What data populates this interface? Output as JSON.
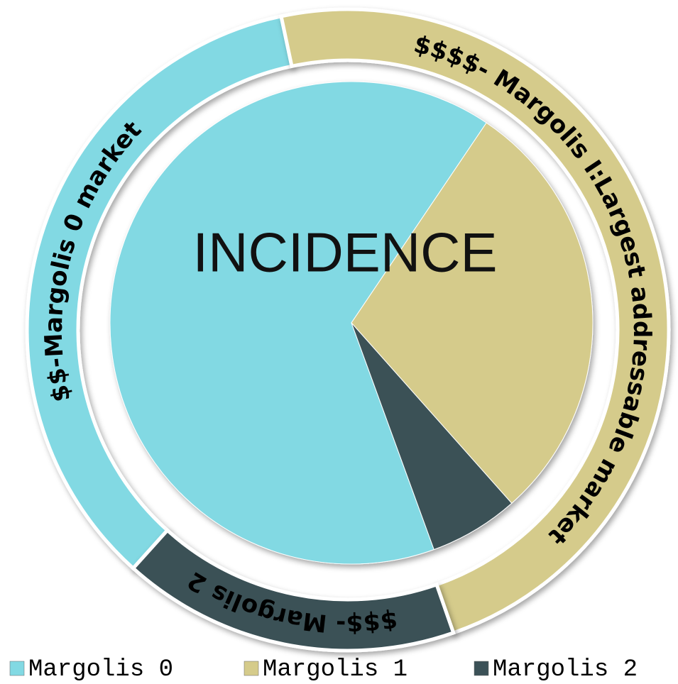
{
  "chart_data": {
    "type": "pie",
    "title": "INCIDENCE",
    "categories": [
      "Margolis 0",
      "Margolis 1",
      "Margolis 2"
    ],
    "values": [
      65,
      29,
      6
    ],
    "colors": [
      "#82d9e3",
      "#d5cb8b",
      "#3b5157"
    ],
    "ring": {
      "labels": [
        "$$-Margolis 0 market",
        "$$$$- Margolis I:Largest addressable market",
        "$$$- Margolis 2"
      ],
      "values": [
        35,
        48,
        17
      ]
    }
  }
}
